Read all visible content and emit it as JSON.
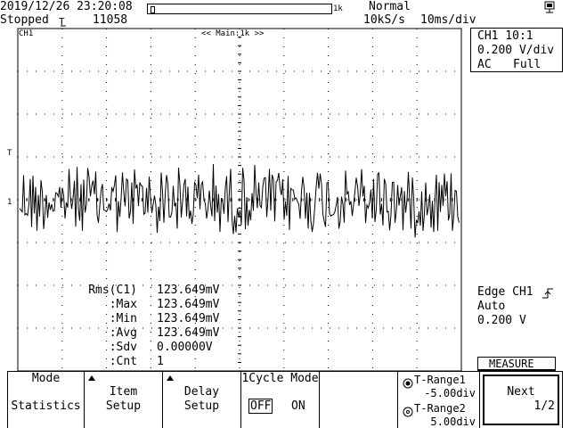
{
  "status": {
    "datetime": "2019/12/26 23:20:08",
    "state": "Stopped",
    "trigger_mark": "T",
    "record_count": "11058",
    "record_label": "1k",
    "trigger_mode": "Normal",
    "sample_rate": "10kS/s",
    "timebase": "10ms/div"
  },
  "screen": {
    "channel_label": "CH1",
    "zoom_label": "<< Main:1k >>",
    "trigger_level_marker": "T",
    "ground_marker": "1"
  },
  "channel_info": {
    "line1": "CH1 10:1",
    "line2": "0.200 V/div",
    "line3_coupling": "AC",
    "line3_bandwidth": "Full"
  },
  "measurements": {
    "rows": [
      {
        "label": "Rms(C1)",
        "value": "123.649mV"
      },
      {
        "label": ":Max",
        "value": "123.649mV"
      },
      {
        "label": ":Min",
        "value": "123.649mV"
      },
      {
        "label": ":Avg",
        "value": "123.649mV"
      },
      {
        "label": ":Sdv",
        "value": "0.00000V"
      },
      {
        "label": ":Cnt",
        "value": "1"
      }
    ]
  },
  "trigger_info": {
    "line1": "Edge CH1",
    "line2": "Auto",
    "line3": "0.200 V"
  },
  "menu": {
    "title": "MEASURE",
    "softkeys": [
      {
        "line1": "Mode",
        "line2": "Statistics"
      },
      {
        "line1": "Item",
        "line2": "Setup"
      },
      {
        "line1": "Delay",
        "line2": "Setup"
      },
      {
        "line1": "1Cycle Mode",
        "off": "OFF",
        "on": "ON"
      },
      {
        "line1": ""
      },
      {
        "t1_label": "T-Range1",
        "t1_value": "-5.00div",
        "t2_label": "T-Range2",
        "t2_value": "5.00div"
      },
      {
        "line1": "Next",
        "page": "1/2"
      }
    ]
  },
  "colors": {
    "foreground": "#000000",
    "background": "#ffffff"
  },
  "icons": [
    "battery-icon",
    "falling-edge-trigger-icon",
    "rising-edge-trigger-icon",
    "jog-dial-icon"
  ]
}
